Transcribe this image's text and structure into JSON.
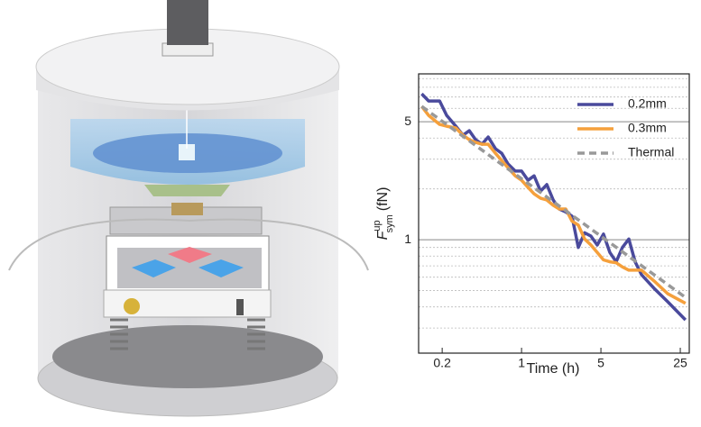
{
  "chart_data": {
    "type": "line",
    "xlabel": "Time (h)",
    "ylabel": {
      "symbol": "F",
      "superscript": "up",
      "subscript": "sym",
      "unit": "(fN)"
    },
    "xscale": "log",
    "yscale": "log",
    "xlim": [
      0.124,
      30
    ],
    "ylim": [
      0.213,
      9.6
    ],
    "xticks": [
      0.2,
      1,
      5,
      25
    ],
    "yticks": [
      1,
      5
    ],
    "yminorgrid": [
      0.3,
      0.4,
      0.5,
      0.6,
      0.7,
      0.8,
      0.9,
      2,
      3,
      4,
      6,
      7,
      8,
      9
    ],
    "legend": "upper right",
    "x": [
      0.132,
      0.152,
      0.19,
      0.219,
      0.264,
      0.305,
      0.347,
      0.394,
      0.448,
      0.508,
      0.589,
      0.669,
      0.76,
      0.88,
      1,
      1.14,
      1.29,
      1.47,
      1.67,
      1.9,
      2.15,
      2.45,
      2.78,
      3.16,
      3.59,
      4.08,
      4.64,
      5.27,
      6.0,
      6.81,
      7.74,
      8.8,
      10,
      11.4,
      14.7,
      19.3,
      27.8
    ],
    "series": [
      {
        "name": "0.2mm",
        "color": "#4a4a9c",
        "linestyle": "solid",
        "values": [
          7.32,
          6.63,
          6.63,
          5.45,
          4.7,
          4.16,
          4.42,
          3.91,
          3.68,
          4.06,
          3.46,
          3.25,
          2.81,
          2.55,
          2.55,
          2.25,
          2.39,
          1.94,
          2.12,
          1.72,
          1.52,
          1.46,
          1.38,
          0.9,
          1.1,
          1.05,
          0.93,
          1.08,
          0.84,
          0.74,
          0.9,
          1.01,
          0.74,
          0.62,
          0.515,
          0.43,
          0.335
        ]
      },
      {
        "name": "0.3mm",
        "color": "#f5a03c",
        "linestyle": "solid",
        "values": [
          6.16,
          5.45,
          4.82,
          4.7,
          4.59,
          4.16,
          3.91,
          3.77,
          3.68,
          3.68,
          3.25,
          2.95,
          2.67,
          2.39,
          2.25,
          2.04,
          1.87,
          1.76,
          1.72,
          1.6,
          1.52,
          1.52,
          1.29,
          1.22,
          1.01,
          0.93,
          0.84,
          0.76,
          0.74,
          0.73,
          0.69,
          0.66,
          0.66,
          0.66,
          0.57,
          0.48,
          0.42
        ]
      },
      {
        "name": "Thermal",
        "color": "#999999",
        "linestyle": "dashed",
        "x": [
          0.132,
          27.8
        ],
        "values": [
          6.16,
          0.455
        ]
      }
    ]
  }
}
